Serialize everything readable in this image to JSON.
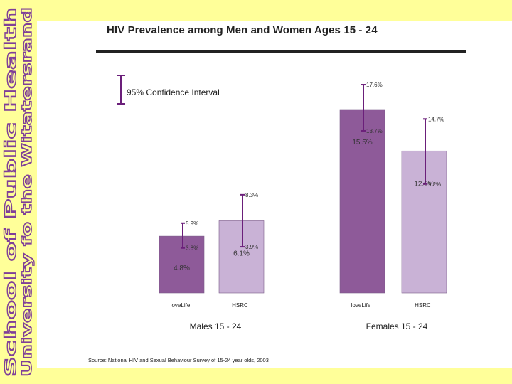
{
  "banner": {
    "line1": "School of Public Health",
    "line2": "University fo the Witatersrand",
    "color": "#7f3f98"
  },
  "colors": {
    "lovelife_bar": "#8e5a99",
    "hsrc_bar": "#c9b2d6",
    "error_bar": "#6b1f7a",
    "panel": "#ffffff",
    "background": "#ffff99"
  },
  "legend": {
    "label": "95% Confidence Interval"
  },
  "source": "Source: National HIV and Sexual Behaviour Survey of 15-24 year olds, 2003",
  "chart_data": {
    "type": "bar",
    "title": "HIV Prevalence among Men and Women Ages 15 - 24",
    "xlabel": "",
    "ylabel": "",
    "ylim": [
      0,
      20
    ],
    "groups": [
      {
        "name": "Males 15 - 24",
        "bars": [
          {
            "category": "loveLife",
            "value": 4.8,
            "value_label": "4.8%",
            "ci_low": 3.8,
            "ci_low_label": "3.8%",
            "ci_high": 5.9,
            "ci_high_label": "5.9%"
          },
          {
            "category": "HSRC",
            "value": 6.1,
            "value_label": "6.1%",
            "ci_low": 3.9,
            "ci_low_label": "3.9%",
            "ci_high": 8.3,
            "ci_high_label": "8.3%"
          }
        ]
      },
      {
        "name": "Females 15 - 24",
        "bars": [
          {
            "category": "loveLife",
            "value": 15.5,
            "value_label": "15.5%",
            "ci_low": 13.7,
            "ci_low_label": "13.7%",
            "ci_high": 17.6,
            "ci_high_label": "17.6%"
          },
          {
            "category": "HSRC",
            "value": 12.0,
            "value_label": "12.0%",
            "ci_low": 9.2,
            "ci_low_label": "9.2%",
            "ci_high": 14.7,
            "ci_high_label": "14.7%"
          }
        ]
      }
    ]
  }
}
